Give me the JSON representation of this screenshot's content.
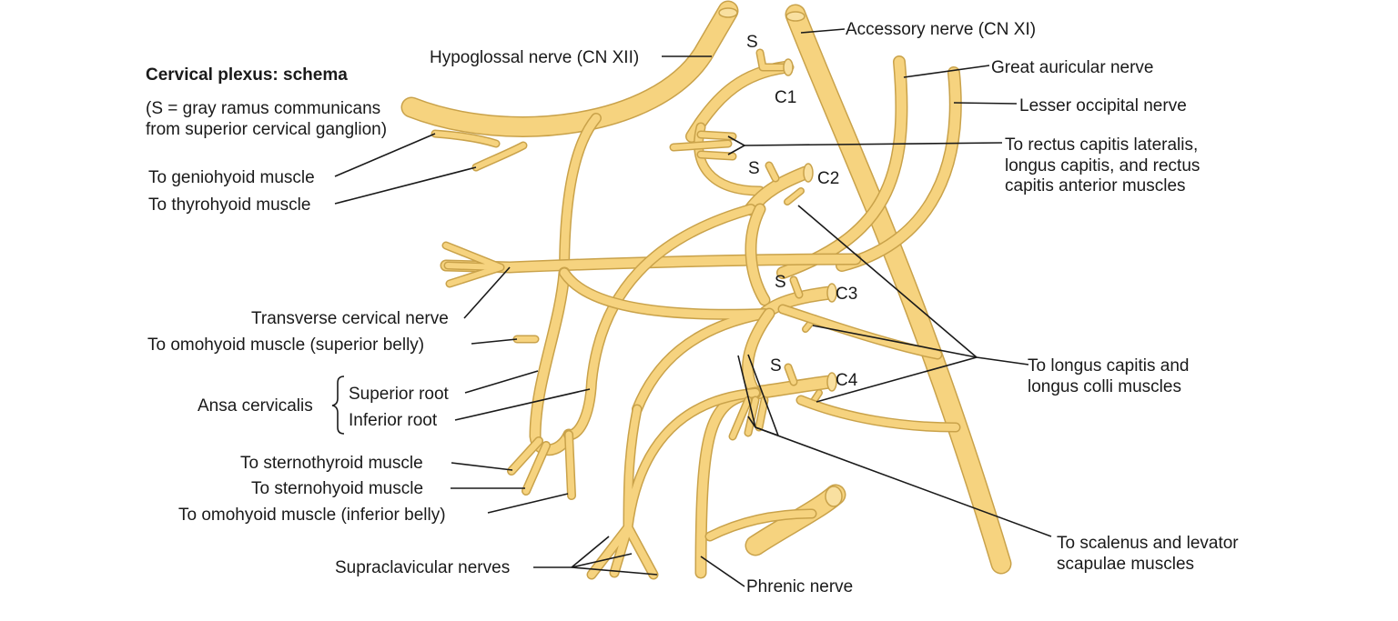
{
  "diagram": {
    "title": "Cervical plexus: schema",
    "note_line1": "(S = gray ramus communicans",
    "note_line2": "from superior cervical ganglion)",
    "colors": {
      "nerve_fill": "#f6d37f",
      "nerve_outline": "#c9a24a",
      "text": "#1a1a1a",
      "background": "#ffffff"
    },
    "labels": {
      "hypoglossal": "Hypoglossal nerve (CN XII)",
      "accessory": "Accessory nerve (CN XI)",
      "great_auricular": "Great auricular nerve",
      "lesser_occipital": "Lesser occipital nerve",
      "rectus_1": "To rectus capitis lateralis,",
      "rectus_2": "longus capitis, and rectus",
      "rectus_3": "capitis anterior muscles",
      "geniohyoid": "To geniohyoid muscle",
      "thyrohyoid": "To thyrohyoid muscle",
      "transverse_cervical": "Transverse cervical nerve",
      "omohyoid_superior": "To omohyoid muscle (superior belly)",
      "ansa": "Ansa cervicalis",
      "superior_root": "Superior root",
      "inferior_root": "Inferior root",
      "sternothyroid": "To sternothyroid muscle",
      "sternohyoid": "To sternohyoid muscle",
      "omohyoid_inferior": "To omohyoid muscle (inferior belly)",
      "supraclavicular": "Supraclavicular nerves",
      "phrenic": "Phrenic nerve",
      "longus_1": "To longus capitis and",
      "longus_2": "longus colli muscles",
      "scalenus_1": "To scalenus and levator",
      "scalenus_2": "scapulae muscles"
    },
    "roots": {
      "c1": "C1",
      "c2": "C2",
      "c3": "C3",
      "c4": "C4"
    },
    "gray_ramus_letter": "S"
  }
}
